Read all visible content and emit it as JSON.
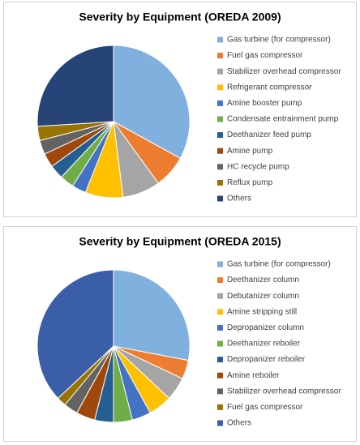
{
  "chart_data": [
    {
      "type": "pie",
      "title": "Severity by Equipment (OREDA 2009)",
      "categories": [
        "Gas turbine (for compressor)",
        "Fuel gas compressor",
        "Stabilizer overhead compressor",
        "Refrigerant compressor",
        "Amine booster pump",
        "Condensate entrainment pump",
        "Deethanizer feed pump",
        "Amine pump",
        "HC recycle pump",
        "Reflux pump",
        "Others"
      ],
      "values": [
        33,
        7,
        8,
        8,
        3,
        3,
        3,
        3,
        3,
        3,
        26
      ],
      "colors": [
        "#7fb0de",
        "#ed7d31",
        "#a5a5a5",
        "#ffc000",
        "#4472c4",
        "#70ad47",
        "#255e91",
        "#9e480e",
        "#636363",
        "#997300",
        "#264478"
      ]
    },
    {
      "type": "pie",
      "title": "Severity by Equipment (OREDA 2015)",
      "categories": [
        "Gas turbine (for compressor)",
        "Deethanizer column",
        "Debutanizer column",
        "Amine stripping still",
        "Depropanizer column",
        "Deethanizer reboiler",
        "Depropanizer reboiler",
        "Amine reboiler",
        "Stabilizer overhead compressor",
        "Fuel gas compressor",
        "Others"
      ],
      "values": [
        28,
        4,
        5,
        5,
        4,
        4,
        4,
        4,
        3,
        2,
        37
      ],
      "colors": [
        "#7fb0de",
        "#ed7d31",
        "#a5a5a5",
        "#ffc000",
        "#4472c4",
        "#70ad47",
        "#255e91",
        "#9e480e",
        "#636363",
        "#997300",
        "#3a5ea8"
      ]
    }
  ]
}
